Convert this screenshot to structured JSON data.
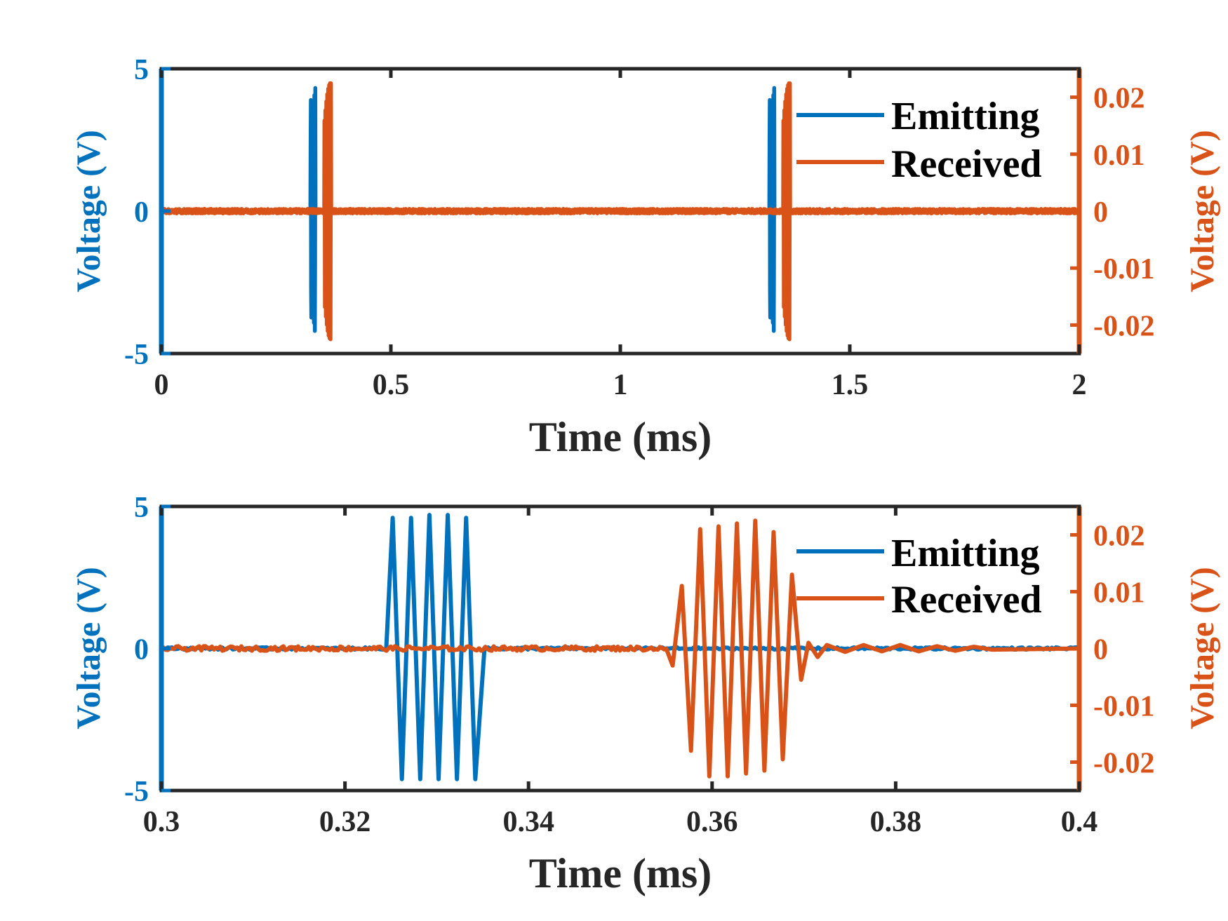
{
  "colors": {
    "emitting": "#0072BD",
    "received": "#D95319",
    "axes": "#262626"
  },
  "chart_data": [
    {
      "type": "line",
      "title": "",
      "xlabel": "Time (ms)",
      "ylabel_left": "Voltage (V)",
      "ylabel_right": "Voltage (V)",
      "xlim": [
        0,
        2
      ],
      "ylim_left": [
        -5,
        5
      ],
      "ylim_right": [
        -0.025,
        0.025
      ],
      "xticks": [
        0,
        0.5,
        1,
        1.5,
        2
      ],
      "xtick_labels": [
        "0",
        "0.5",
        "1",
        "1.5",
        "2"
      ],
      "yticks_left": [
        -5,
        0,
        5
      ],
      "ytick_labels_left": [
        "-5",
        "0",
        "5"
      ],
      "yticks_right": [
        -0.02,
        -0.01,
        0,
        0.01,
        0.02
      ],
      "ytick_labels_right": [
        "-0.02",
        "-0.01",
        "0",
        "0.01",
        "0.02"
      ],
      "grid": false,
      "legend_position": "top-right",
      "series": [
        {
          "name": "Emitting",
          "axis": "left",
          "bursts": [
            {
              "start": 0.325,
              "end": 0.3355,
              "amplitude": 4.7,
              "frequency_khz": 500
            },
            {
              "start": 1.325,
              "end": 1.3355,
              "amplitude": 4.7,
              "frequency_khz": 500
            }
          ]
        },
        {
          "name": "Received",
          "axis": "right",
          "bursts": [
            {
              "start": 0.355,
              "end": 0.37,
              "amplitude": 0.0225,
              "frequency_khz": 500
            },
            {
              "start": 1.355,
              "end": 1.37,
              "amplitude": 0.0225,
              "frequency_khz": 500
            }
          ]
        }
      ]
    },
    {
      "type": "line",
      "title": "",
      "xlabel": "Time (ms)",
      "ylabel_left": "Voltage (V)",
      "ylabel_right": "Voltage (V)",
      "xlim": [
        0.3,
        0.4
      ],
      "ylim_left": [
        -5,
        5
      ],
      "ylim_right": [
        -0.025,
        0.025
      ],
      "xticks": [
        0.3,
        0.32,
        0.34,
        0.36,
        0.38,
        0.4
      ],
      "xtick_labels": [
        "0.3",
        "0.32",
        "0.34",
        "0.36",
        "0.38",
        "0.4"
      ],
      "yticks_left": [
        -5,
        0,
        5
      ],
      "ytick_labels_left": [
        "-5",
        "0",
        "5"
      ],
      "yticks_right": [
        -0.02,
        -0.01,
        0,
        0.01,
        0.02
      ],
      "ytick_labels_right": [
        "-0.02",
        "-0.01",
        "0",
        "0.01",
        "0.02"
      ],
      "grid": false,
      "legend_position": "top-right",
      "series": [
        {
          "name": "Emitting",
          "axis": "left",
          "x": [
            0.3,
            0.3245,
            0.3252,
            0.3262,
            0.3272,
            0.3282,
            0.3292,
            0.3302,
            0.3312,
            0.3322,
            0.3332,
            0.3342,
            0.3352,
            0.3358,
            0.4
          ],
          "y": [
            0,
            0,
            4.6,
            -4.6,
            4.6,
            -4.6,
            4.7,
            -4.6,
            4.7,
            -4.6,
            4.6,
            -4.6,
            0,
            0,
            0
          ]
        },
        {
          "name": "Received",
          "axis": "right",
          "x": [
            0.3,
            0.355,
            0.3557,
            0.3567,
            0.3577,
            0.3587,
            0.3597,
            0.3607,
            0.3617,
            0.3627,
            0.3637,
            0.3647,
            0.3657,
            0.3667,
            0.3677,
            0.3687,
            0.3697,
            0.3705,
            0.3715,
            0.3725,
            0.3745,
            0.3765,
            0.3785,
            0.3805,
            0.3825,
            0.3845,
            0.3865,
            0.3885,
            0.3905,
            0.4
          ],
          "y": [
            0,
            0,
            -0.003,
            0.011,
            -0.018,
            0.021,
            -0.0225,
            0.0215,
            -0.0225,
            0.022,
            -0.022,
            0.0225,
            -0.0215,
            0.0205,
            -0.0195,
            0.013,
            -0.0055,
            0.001,
            -0.0015,
            0.0006,
            -0.0006,
            0.0006,
            -0.0005,
            0.0006,
            -0.0005,
            0.0004,
            -0.0004,
            0.0003,
            -0.0002,
            0
          ]
        }
      ]
    }
  ]
}
